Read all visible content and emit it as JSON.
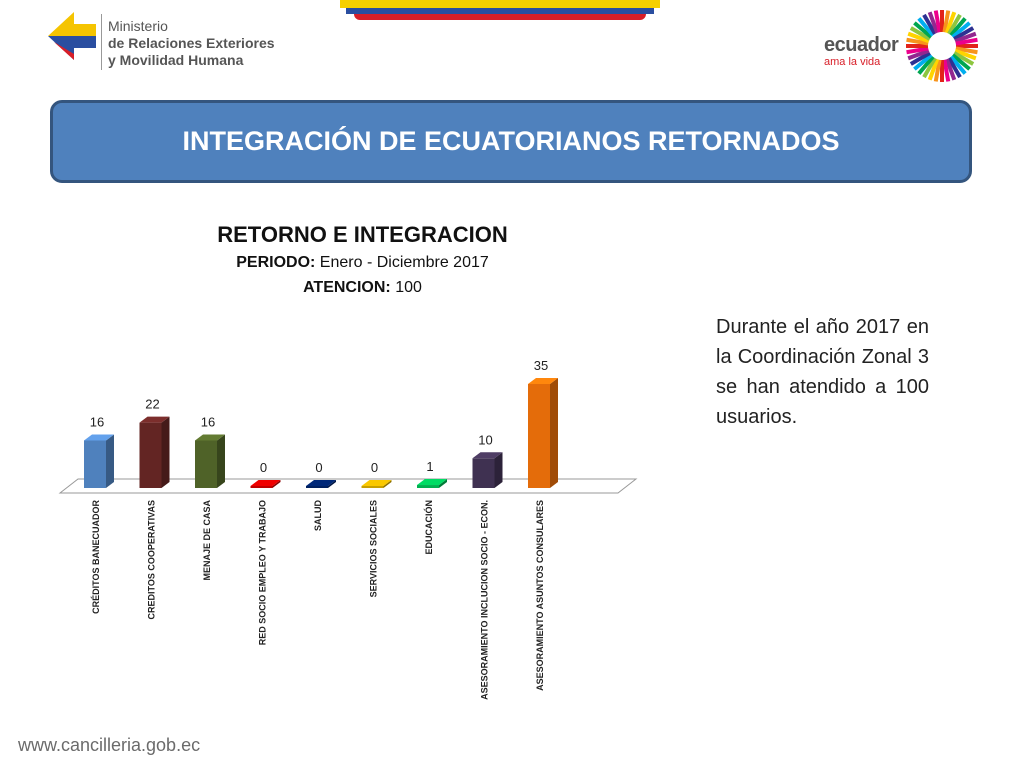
{
  "header": {
    "ministry_line1": "Ministerio",
    "ministry_line2": "de Relaciones Exteriores",
    "ministry_line3": "y Movilidad Humana",
    "ecuador_name": "ecuador",
    "ecuador_tagline": "ama la vida"
  },
  "banner": {
    "title": "INTEGRACIÓN DE ECUATORIANOS RETORNADOS"
  },
  "chart_info": {
    "title": "RETORNO E INTEGRACION",
    "periodo_label": "PERIODO:",
    "periodo_value": "Enero -  Diciembre 2017",
    "atencion_label": "ATENCION:",
    "atencion_value": "100"
  },
  "description": "Durante el año 2017 en la Coordinación Zonal 3 se han atendido a 100 usuarios.",
  "footer": {
    "url": "www.cancilleria.gob.ec"
  },
  "chart_data": {
    "type": "bar",
    "title": "RETORNO E INTEGRACION",
    "categories": [
      "CRÉDITOS BANECUADOR",
      "CREDITOS COOPERATIVAS",
      "MENAJE DE CASA",
      "RED SOCIO EMPLEO Y TRABAJO",
      "SALUD",
      "SERVICIOS SOCIALES",
      "EDUCACIÓN",
      "ASESORAMIENTO INCLUCION SOCIO - ECON.",
      "ASESORAMIENTO ASUNTOS CONSULARES"
    ],
    "values": [
      16,
      22,
      16,
      0,
      0,
      0,
      1,
      10,
      35
    ],
    "colors": [
      "#4f81bd",
      "#632523",
      "#4f6228",
      "#c00000",
      "#002060",
      "#c8a000",
      "#00b050",
      "#3f3151",
      "#e46c0a"
    ],
    "xlabel": "",
    "ylabel": "",
    "ylim": [
      0,
      35
    ],
    "grid": false,
    "legend": "none",
    "style": "3d-column"
  }
}
